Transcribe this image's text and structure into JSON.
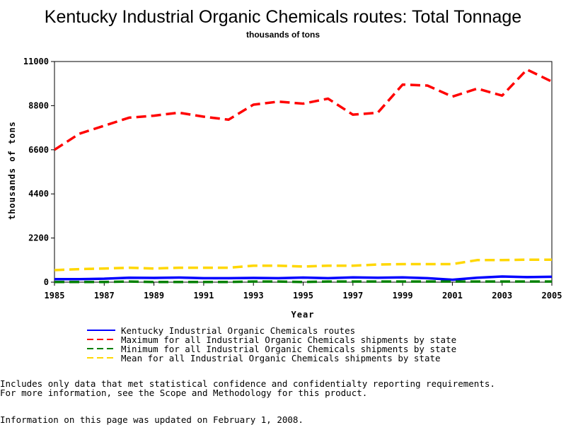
{
  "chart_data": {
    "type": "line",
    "title": "Kentucky Industrial Organic Chemicals routes: Total Tonnage",
    "subtitle": "thousands of tons",
    "xlabel": "Year",
    "ylabel": "thousands of tons",
    "xlim": [
      1985,
      2005
    ],
    "ylim": [
      0,
      11000
    ],
    "x_ticks": [
      1985,
      1987,
      1989,
      1991,
      1993,
      1995,
      1997,
      1999,
      2001,
      2003,
      2005
    ],
    "y_ticks": [
      0,
      2200,
      4400,
      6600,
      8800,
      11000
    ],
    "grid": false,
    "legend_position": "bottom",
    "x": [
      1985,
      1986,
      1987,
      1988,
      1989,
      1990,
      1991,
      1992,
      1993,
      1994,
      1995,
      1996,
      1997,
      1998,
      1999,
      2000,
      2001,
      2002,
      2003,
      2004,
      2005
    ],
    "series": [
      {
        "name": "Kentucky Industrial Organic Chemicals routes",
        "color": "#0000ff",
        "dash": "solid",
        "values": [
          150,
          150,
          170,
          220,
          210,
          230,
          200,
          200,
          210,
          200,
          230,
          200,
          240,
          220,
          240,
          200,
          120,
          220,
          280,
          250,
          270
        ]
      },
      {
        "name": "Maximum for all Industrial Organic Chemicals shipments by state",
        "color": "#ff0000",
        "dash": "dashed",
        "values": [
          6600,
          7400,
          7800,
          8200,
          8300,
          8450,
          8250,
          8100,
          8850,
          9000,
          8900,
          9150,
          8350,
          8450,
          9850,
          9800,
          9250,
          9650,
          9300,
          10600,
          10000
        ]
      },
      {
        "name": "Minimum for all Industrial Organic Chemicals shipments by state",
        "color": "#008000",
        "dash": "dashed",
        "values": [
          10,
          10,
          10,
          30,
          10,
          10,
          10,
          10,
          30,
          30,
          10,
          30,
          30,
          30,
          30,
          30,
          30,
          30,
          30,
          30,
          30
        ]
      },
      {
        "name": "Mean for all Industrial Organic Chemicals shipments by state",
        "color": "#ffd700",
        "dash": "dashed",
        "values": [
          600,
          650,
          680,
          720,
          680,
          720,
          720,
          720,
          820,
          820,
          780,
          820,
          820,
          880,
          900,
          900,
          900,
          1100,
          1100,
          1120,
          1120
        ]
      }
    ]
  },
  "footnotes": {
    "line1": "Includes only data that met statistical confidence and confidentialty reporting requirements.",
    "line2": "For more information, see the Scope and Methodology for this product.",
    "updated": "Information on this page was updated on February 1, 2008."
  }
}
